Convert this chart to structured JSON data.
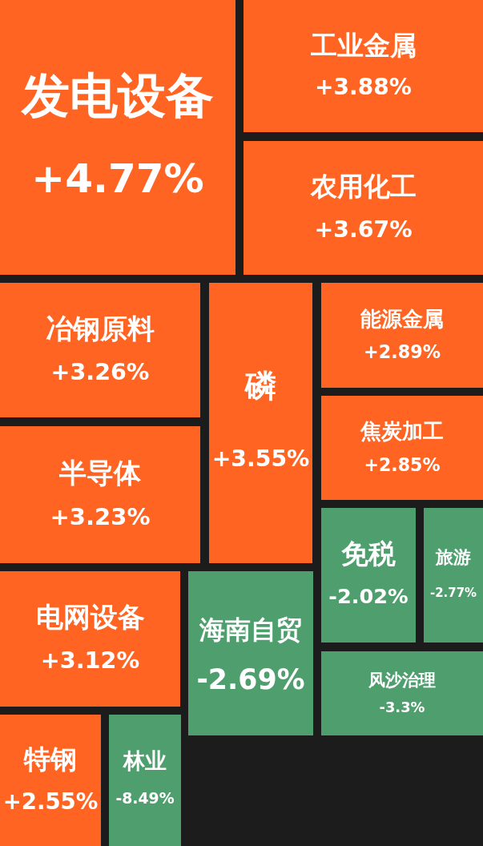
{
  "chart_data": {
    "type": "other",
    "categories": [
      "发电设备",
      "工业金属",
      "农用化工",
      "冶钢原料",
      "磷",
      "能源金属",
      "焦炭加工",
      "半导体",
      "免税",
      "旅游",
      "电网设备",
      "海南自贸",
      "风沙治理",
      "特钢",
      "林业"
    ],
    "values": [
      4.77,
      3.88,
      3.67,
      3.26,
      3.55,
      2.89,
      2.85,
      3.23,
      -2.02,
      -2.77,
      3.12,
      -2.69,
      -3.3,
      2.55,
      -8.49
    ],
    "value_labels": [
      "+4.77%",
      "+3.88%",
      "+3.67%",
      "+3.26%",
      "+3.55%",
      "+2.89%",
      "+2.85%",
      "+3.23%",
      "-2.02%",
      "-2.77%",
      "+3.12%",
      "-2.69%",
      "-3.3%",
      "+2.55%",
      "-8.49%"
    ],
    "colors": [
      "#ff6422",
      "#ff6422",
      "#ff6422",
      "#ff6422",
      "#ff6422",
      "#ff6422",
      "#ff6422",
      "#ff6422",
      "#4f9e6e",
      "#4f9e6e",
      "#ff6422",
      "#4f9e6e",
      "#4f9e6e",
      "#ff6422",
      "#4f9e6e"
    ]
  }
}
